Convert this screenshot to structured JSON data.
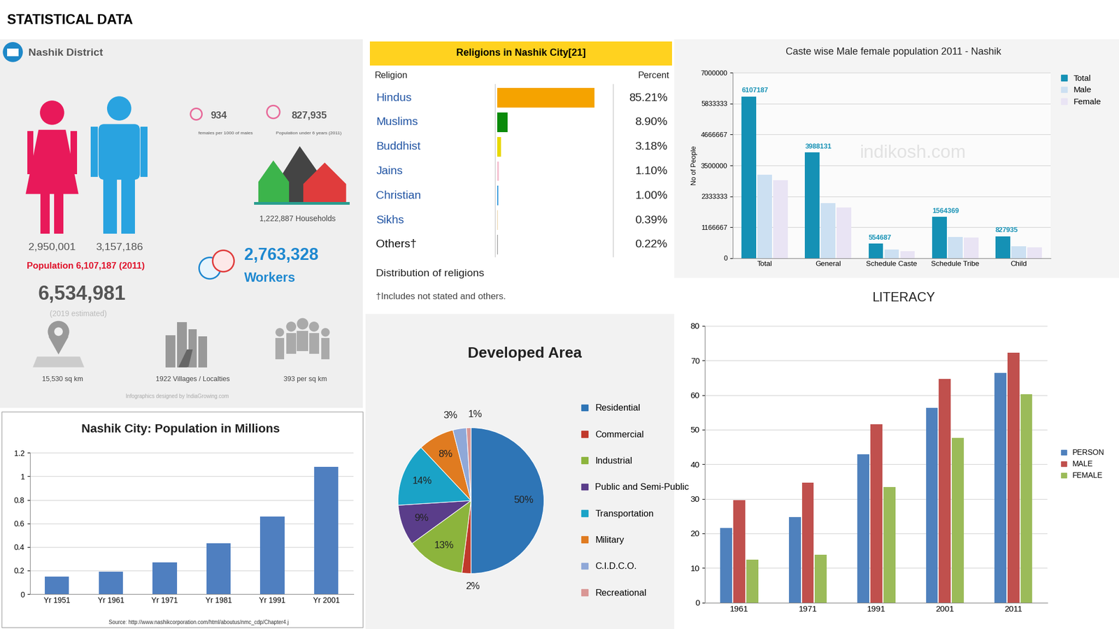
{
  "title": "STATISTICAL DATA",
  "district": {
    "title": "Nashik District",
    "sex_ratio": "934",
    "sex_ratio_label": "females per 1000 of males",
    "under6": "827,935",
    "under6_label": "Population under 6 years (2011)",
    "households": "1,222,887 Households",
    "female": "2,950,001",
    "male": "3,157,186",
    "population": "Population 6,107,187 (2011)",
    "workers": "2,763,328",
    "workers_label": "Workers",
    "estimate": "6,534,981",
    "estimate_label": "(2019 estimated)",
    "area": "15,530 sq km",
    "villages": "1922 Villages / Localties",
    "density": "393 per sq km",
    "credit": "Infographics designed by IndiaGrowing.com"
  },
  "religions": {
    "title": "Religions in Nashik City[21]",
    "header": [
      "Religion",
      "Percent"
    ],
    "xlim": [
      0,
      100
    ],
    "rows": [
      {
        "name": "Hindus",
        "value": 85.21,
        "label": "85.21%",
        "color": "#f5a300"
      },
      {
        "name": "Muslims",
        "value": 8.9,
        "label": "8.90%",
        "color": "#0a8a0a"
      },
      {
        "name": "Buddhist",
        "value": 3.18,
        "label": "3.18%",
        "color": "#e8d800"
      },
      {
        "name": "Jains",
        "value": 1.1,
        "label": "1.10%",
        "color": "#f5c0d0"
      },
      {
        "name": "Christian",
        "value": 1.0,
        "label": "1.00%",
        "color": "#3399dd"
      },
      {
        "name": "Sikhs",
        "value": 0.39,
        "label": "0.39%",
        "color": "#e8d0a0"
      },
      {
        "name": "Others†",
        "value": 0.22,
        "label": "0.22%",
        "color": "#888888"
      }
    ],
    "caption": "Distribution of religions",
    "note": "†Includes not stated and others."
  },
  "chart_data": [
    {
      "type": "bar",
      "title": "Nashik City: Population in Millions",
      "categories": [
        "Yr 1951",
        "Yr 1961",
        "Yr 1971",
        "Yr 1981",
        "Yr 1991",
        "Yr 2001"
      ],
      "values": [
        0.15,
        0.19,
        0.27,
        0.43,
        0.66,
        1.08
      ],
      "color": "#4f7fc0",
      "ylim": [
        0,
        1.2
      ],
      "yticks": [
        0,
        0.2,
        0.4,
        0.6,
        0.8,
        1,
        1.2
      ],
      "grid": true,
      "annotations": [
        "Source: http://www.nashikcorporation.com/html/aboutus/nmc_cdp/Chapter4.j"
      ]
    },
    {
      "type": "bar",
      "title": "Caste wise Male female population 2011 - Nashik",
      "y_label": "No of People",
      "categories": [
        "Total",
        "General",
        "Schedule Caste",
        "Schedule Tribe",
        "Child"
      ],
      "series": [
        {
          "name": "Total",
          "color": "#1591b5",
          "values": [
            6107187,
            3988131,
            554687,
            1564369,
            827935
          ],
          "data_labels": true
        },
        {
          "name": "Male",
          "color": "#cce0f2",
          "values": [
            3157186,
            2070000,
            323000,
            808000,
            458000
          ]
        },
        {
          "name": "Female",
          "color": "#e9e4f4",
          "values": [
            2950001,
            1910000,
            270000,
            780000,
            404000
          ]
        }
      ],
      "ylim": [
        0,
        7000000
      ],
      "yticks": [
        0,
        1166667,
        2333333,
        3500000,
        4666667,
        5833333,
        7000000
      ],
      "grid": true,
      "legend": "upper right",
      "annotations": [
        "indikosh.com"
      ]
    },
    {
      "type": "pie",
      "title": "Developed Area",
      "categories": [
        "Residential",
        "Commercial",
        "Industrial",
        "Public and Semi-Public",
        "Transportation",
        "Military",
        "C.I.D.C.O.",
        "Recreational"
      ],
      "values": [
        50,
        2,
        13,
        9,
        14,
        8,
        3,
        1
      ],
      "value_labels": [
        "50%",
        "2%",
        "13%",
        "9%",
        "14%",
        "8%",
        "3%",
        "1%"
      ],
      "colors": [
        "#2e75b6",
        "#c0392b",
        "#8cb43c",
        "#5a3d8a",
        "#1aa3c7",
        "#e07b20",
        "#8fa8d8",
        "#d99694"
      ],
      "legend": "right"
    },
    {
      "type": "bar",
      "title": "LITERACY",
      "categories": [
        "1961",
        "1971",
        "1991",
        "2001",
        "2011"
      ],
      "series": [
        {
          "name": "PERSON",
          "color": "#4f81bd",
          "values": [
            21.6,
            24.7,
            42.9,
            56.3,
            66.4
          ]
        },
        {
          "name": "MALE",
          "color": "#c0504d",
          "values": [
            29.7,
            34.6,
            51.5,
            64.7,
            72.2
          ]
        },
        {
          "name": "FEMALE",
          "color": "#9bbb59",
          "values": [
            12.4,
            13.8,
            33.4,
            47.6,
            60.2
          ]
        }
      ],
      "ylim": [
        0,
        80
      ],
      "yticks": [
        0,
        10,
        20,
        30,
        40,
        50,
        60,
        70,
        80
      ],
      "grid": true,
      "legend": "right"
    }
  ]
}
